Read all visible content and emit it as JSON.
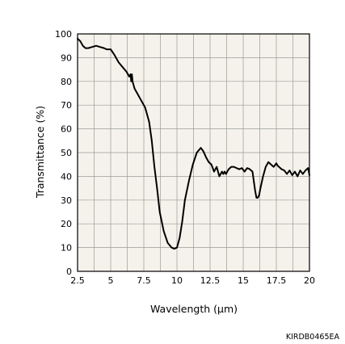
{
  "chart_data": {
    "type": "line",
    "xlabel": "Wavelength (µm)",
    "ylabel": "Transmittance (%)",
    "xlim": [
      2.5,
      20
    ],
    "ylim": [
      0,
      100
    ],
    "x_ticks": [
      "2.5",
      "5",
      "7.5",
      "10",
      "12.5",
      "15",
      "17.5",
      "20"
    ],
    "y_ticks": [
      "0",
      "10",
      "20",
      "30",
      "40",
      "50",
      "60",
      "70",
      "80",
      "90",
      "100"
    ],
    "grid": true,
    "plot_background": "#f4f2ea",
    "line_color": "#000000",
    "grid_color": "#9a9a9a",
    "series": [
      {
        "x": [
          2.5,
          2.7,
          2.9,
          3.1,
          3.3,
          3.6,
          3.9,
          4.2,
          4.5,
          4.7,
          5.0,
          5.3,
          5.6,
          5.9,
          6.2,
          6.4,
          6.5,
          6.55,
          6.6,
          6.65,
          6.7,
          6.8,
          7.0,
          7.3,
          7.6,
          7.9,
          8.1,
          8.3,
          8.5,
          8.7,
          9.0,
          9.3,
          9.6,
          9.8,
          10.0,
          10.2,
          10.4,
          10.6,
          10.9,
          11.2,
          11.5,
          11.8,
          12.0,
          12.2,
          12.4,
          12.6,
          12.8,
          13.0,
          13.2,
          13.4,
          13.5,
          13.6,
          13.7,
          13.9,
          14.1,
          14.3,
          14.5,
          14.7,
          14.9,
          15.1,
          15.3,
          15.5,
          15.7,
          15.8,
          15.9,
          16.0,
          16.1,
          16.2,
          16.3,
          16.5,
          16.7,
          16.9,
          17.1,
          17.3,
          17.5,
          17.6,
          17.7,
          17.9,
          18.1,
          18.3,
          18.5,
          18.7,
          18.9,
          19.1,
          19.3,
          19.5,
          19.7,
          19.9,
          20.0
        ],
        "y": [
          98,
          97,
          95,
          94,
          94,
          94.5,
          95,
          94.5,
          94,
          93.5,
          93.5,
          91,
          88,
          86,
          84,
          82,
          83,
          80,
          83,
          80,
          79,
          77,
          75,
          72,
          69,
          63,
          55,
          44,
          35,
          25,
          17,
          12,
          10,
          9.5,
          10,
          14,
          21,
          30,
          38,
          45,
          50,
          52,
          50.5,
          48,
          46,
          45,
          42,
          44,
          40,
          42,
          41,
          42,
          41,
          43,
          44,
          44,
          43.5,
          43,
          43.5,
          42,
          43.5,
          43,
          42,
          38,
          34,
          31,
          31,
          32,
          35,
          40,
          44,
          46,
          45,
          44,
          45.5,
          44.5,
          44,
          43,
          42.5,
          41,
          42.5,
          40.5,
          42,
          40,
          42.5,
          41,
          42.5,
          43.5,
          40.5
        ]
      }
    ]
  },
  "figure_code": "KIRDB0465EA"
}
